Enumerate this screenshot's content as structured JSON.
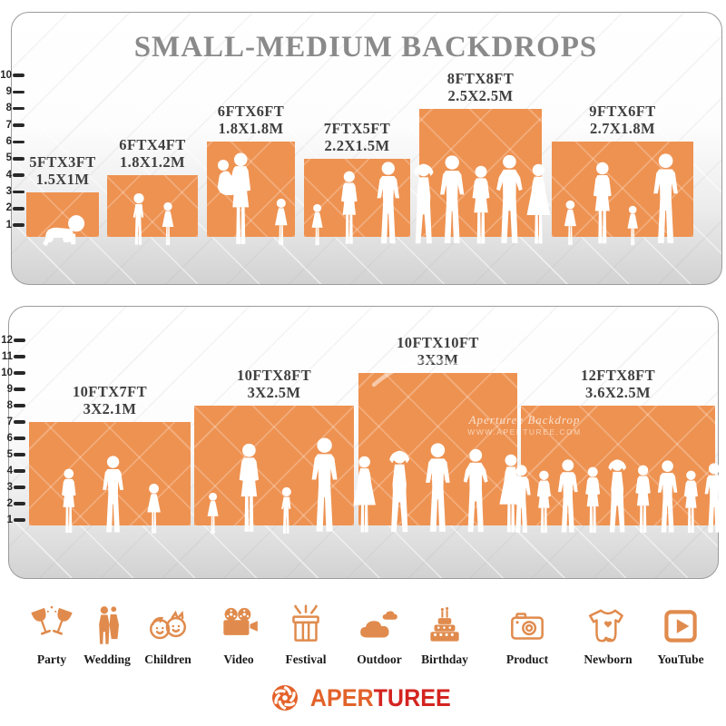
{
  "title": "SMALL-MEDIUM BACKDROPS",
  "panels": [
    {
      "name": "small-medium-backdrops-row-1",
      "ruler": [
        "10",
        "9",
        "8",
        "7",
        "6",
        "5",
        "4",
        "3",
        "2",
        "1"
      ],
      "backdrops": [
        {
          "size_ft": "5FTX3FT",
          "size_m": "1.5X1M",
          "figures": [
            "baby"
          ]
        },
        {
          "size_ft": "6FTX4FT",
          "size_m": "1.8X1.2M",
          "figures": [
            "boy",
            "girl"
          ]
        },
        {
          "size_ft": "6FTX6FT",
          "size_m": "1.8X1.8M",
          "figures": [
            "woman-carrying-child",
            "girl"
          ]
        },
        {
          "size_ft": "7FTX5FT",
          "size_m": "2.2X1.5M",
          "figures": [
            "girl",
            "woman",
            "man"
          ]
        },
        {
          "size_ft": "8FTX8FT",
          "size_m": "2.5X2.5M",
          "figures": [
            "woman-arms-up",
            "man",
            "woman",
            "man-hands-on-hips",
            "woman-dress"
          ]
        },
        {
          "size_ft": "9FTX6FT",
          "size_m": "2.7X1.8M",
          "figures": [
            "girl",
            "woman",
            "girl",
            "man"
          ]
        }
      ]
    },
    {
      "name": "small-medium-backdrops-row-2",
      "ruler": [
        "12",
        "11",
        "10",
        "9",
        "8",
        "7",
        "6",
        "5",
        "4",
        "3",
        "2",
        "1"
      ],
      "backdrops": [
        {
          "size_ft": "10FTX7FT",
          "size_m": "3X2.1M",
          "figures": [
            "woman",
            "man",
            "girl"
          ]
        },
        {
          "size_ft": "10FTX8FT",
          "size_m": "3X2.5M",
          "figures": [
            "girl",
            "woman",
            "boy",
            "man"
          ]
        },
        {
          "size_ft": "10FTX10FT",
          "size_m": "3X3M",
          "figures": [
            "woman-dress",
            "man-arms-up",
            "man",
            "man-hands-on-hips",
            "woman-dress"
          ]
        },
        {
          "size_ft": "12FTX8FT",
          "size_m": "3.6X2.5M",
          "figures": [
            "man",
            "woman",
            "man",
            "woman",
            "man-arms-up",
            "woman",
            "man",
            "woman",
            "man"
          ]
        }
      ],
      "watermark": {
        "line1": "Aperturee Backdrop",
        "line2": "WWW.APERTUREE.COM"
      }
    }
  ],
  "categories": [
    {
      "label": "Party",
      "icon": "party-icon"
    },
    {
      "label": "Wedding",
      "icon": "wedding-icon"
    },
    {
      "label": "Children",
      "icon": "children-icon"
    },
    {
      "label": "Video",
      "icon": "video-icon"
    },
    {
      "label": "Festival",
      "icon": "festival-icon"
    },
    {
      "label": "Outdoor",
      "icon": "outdoor-icon"
    },
    {
      "label": "Birthday",
      "icon": "birthday-icon"
    },
    {
      "label": "Product",
      "icon": "product-icon"
    },
    {
      "label": "Newborn",
      "icon": "newborn-icon"
    },
    {
      "label": "YouTube",
      "icon": "youtube-icon"
    }
  ],
  "logo": {
    "brand_part1": "APER",
    "brand_part2": "TUREE"
  },
  "colors": {
    "backdrop_orange": "#EE9251",
    "icon_orange": "#E08B4D",
    "title_gray": "#8A8A8A",
    "label_gray": "#3F3F3F",
    "logo_orange": "#E2622A",
    "logo_red": "#D42420"
  },
  "chart_data": [
    {
      "type": "bar",
      "title": "SMALL-MEDIUM BACKDROPS — row 1 (height in ft vs backdrop size)",
      "categories": [
        "5FTX3FT (1.5X1M)",
        "6FTX4FT (1.8X1.2M)",
        "6FTX6FT (1.8X1.8M)",
        "7FTX5FT (2.2X1.5M)",
        "8FTX8FT (2.5X2.5M)",
        "9FTX6FT (2.7X1.8M)"
      ],
      "values": [
        3,
        4,
        6,
        5,
        8,
        6
      ],
      "bar_widths_ft": [
        5,
        6,
        6,
        7,
        8,
        9
      ],
      "xlabel": "",
      "ylabel": "",
      "y_ticks": [
        1,
        2,
        3,
        4,
        5,
        6,
        7,
        8,
        9,
        10
      ],
      "ylim": [
        0,
        10
      ],
      "legend": "none",
      "grid": false
    },
    {
      "type": "bar",
      "title": "SMALL-MEDIUM BACKDROPS — row 2 (height in ft vs backdrop size)",
      "categories": [
        "10FTX7FT (3X2.1M)",
        "10FTX8FT (3X2.5M)",
        "10FTX10FT (3X3M)",
        "12FTX8FT (3.6X2.5M)"
      ],
      "values": [
        7,
        8,
        10,
        8
      ],
      "bar_widths_ft": [
        10,
        10,
        10,
        12
      ],
      "xlabel": "",
      "ylabel": "",
      "y_ticks": [
        1,
        2,
        3,
        4,
        5,
        6,
        7,
        8,
        9,
        10,
        11,
        12
      ],
      "ylim": [
        0,
        12
      ],
      "legend": "none",
      "grid": false
    }
  ]
}
